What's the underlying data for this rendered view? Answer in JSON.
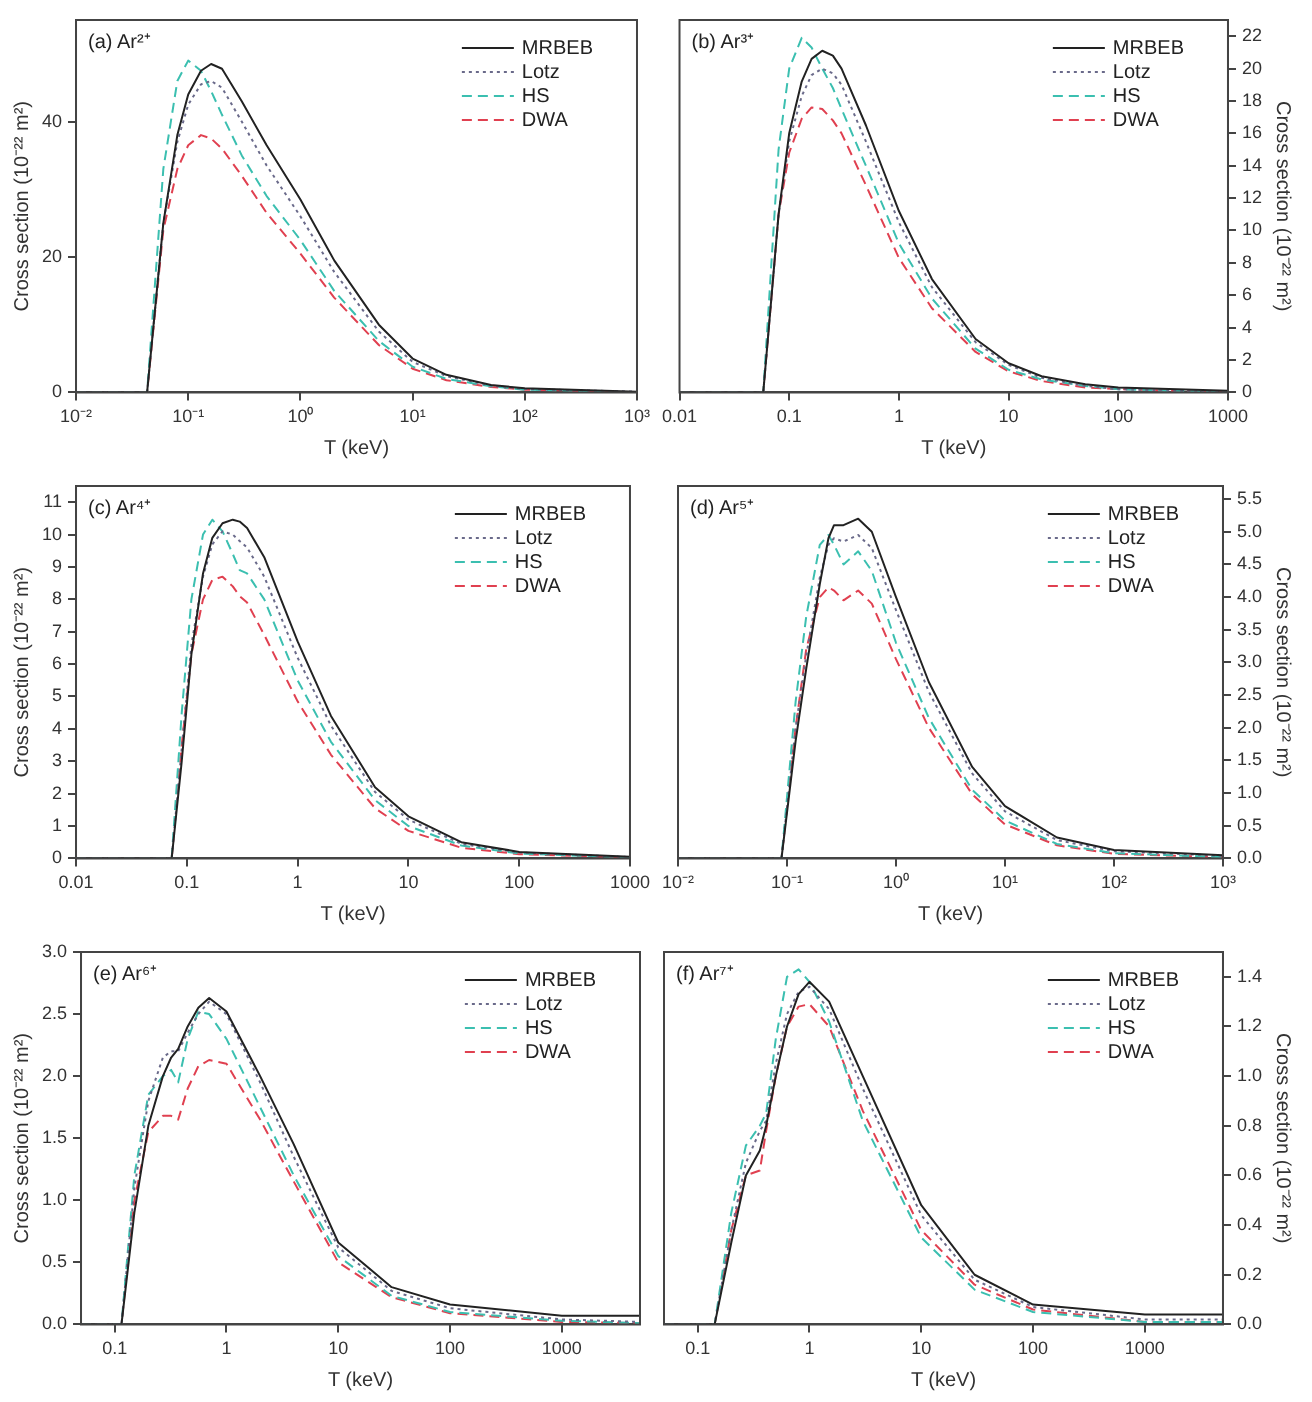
{
  "chart_data": [
    {
      "type": "line",
      "title": "(a) Ar²⁺",
      "xlabel": "T (keV)",
      "ylabel": "Cross section (10⁻²² m²)",
      "log": "x",
      "legend": "top right",
      "marker": "none",
      "xlim": [
        0.01,
        1000
      ],
      "xticks": [
        {
          "value": 0.01,
          "label": "10⁻²"
        },
        {
          "value": 0.1,
          "label": "10⁻¹"
        },
        {
          "value": 1,
          "label": "10⁰"
        },
        {
          "value": 10,
          "label": "10¹"
        },
        {
          "value": 100,
          "label": "10²"
        },
        {
          "value": 1000,
          "label": "10³"
        }
      ],
      "ylim": [
        0,
        55
      ],
      "yticks": [
        0,
        20,
        40
      ],
      "x": [
        0.01,
        0.043,
        0.06,
        0.08,
        0.1,
        0.13,
        0.16,
        0.2,
        0.3,
        0.5,
        1,
        2,
        5,
        10,
        20,
        50,
        100,
        1000
      ],
      "series": [
        {
          "name": "MRBEB",
          "color": "#222222",
          "line_style": "solid",
          "values": [
            0,
            0,
            25,
            38,
            44,
            47.5,
            48.5,
            47.8,
            43,
            36.5,
            28.5,
            19.5,
            10,
            5,
            2.6,
            1.1,
            0.6,
            0.1
          ]
        },
        {
          "name": "Lotz",
          "color": "#6a6a8a",
          "line_style": "dotted",
          "values": [
            0,
            0,
            25,
            37,
            42.5,
            45.5,
            46,
            45,
            40,
            33.5,
            26,
            17.8,
            9,
            4.5,
            2.4,
            1,
            0.5,
            0.1
          ]
        },
        {
          "name": "HS",
          "color": "#3bbfb0",
          "line_style": "dashed",
          "values": [
            0,
            0,
            33,
            46,
            49,
            47.5,
            44.5,
            41,
            35,
            29,
            22.5,
            15,
            7.6,
            3.8,
            2,
            0.9,
            0.4,
            0
          ]
        },
        {
          "name": "DWA",
          "color": "#e04050",
          "line_style": "dashed",
          "values": [
            0,
            0,
            24,
            33,
            36.5,
            38,
            37.5,
            36,
            32,
            26.5,
            20.5,
            14,
            7,
            3.5,
            1.8,
            0.8,
            0.4,
            0
          ]
        }
      ]
    },
    {
      "type": "line",
      "title": "(b) Ar³⁺",
      "xlabel": "T (keV)",
      "y2label": "Cross section (10⁻²² m²)",
      "log": "x",
      "legend": "top right",
      "marker": "none",
      "xlim": [
        0.01,
        1000
      ],
      "xticks": [
        0.01,
        0.1,
        1,
        10,
        100,
        1000
      ],
      "y2lim": [
        0,
        23
      ],
      "y2ticks": [
        0,
        2,
        4,
        6,
        8,
        10,
        12,
        14,
        16,
        18,
        20,
        22
      ],
      "x": [
        0.01,
        0.058,
        0.08,
        0.1,
        0.13,
        0.16,
        0.2,
        0.25,
        0.3,
        0.5,
        1,
        2,
        5,
        10,
        20,
        50,
        100,
        1000
      ],
      "series": [
        {
          "name": "MRBEB",
          "color": "#222222",
          "line_style": "solid",
          "axis": "y2",
          "values": [
            0,
            0,
            11,
            16,
            19.2,
            20.6,
            21.1,
            20.8,
            20,
            16.5,
            11.2,
            7,
            3.3,
            1.8,
            1,
            0.5,
            0.3,
            0.1
          ]
        },
        {
          "name": "Lotz",
          "color": "#6a6a8a",
          "line_style": "dotted",
          "axis": "y2",
          "values": [
            0,
            0,
            11,
            15.5,
            18.3,
            19.6,
            20,
            19.7,
            19,
            15.5,
            10.5,
            6.5,
            3.1,
            1.7,
            0.9,
            0.4,
            0.2,
            0
          ]
        },
        {
          "name": "HS",
          "color": "#3bbfb0",
          "line_style": "dashed",
          "axis": "y2",
          "values": [
            0,
            0,
            15,
            20,
            21.9,
            21.3,
            20,
            18.8,
            17.5,
            14,
            9.2,
            5.8,
            2.7,
            1.4,
            0.8,
            0.4,
            0.2,
            0
          ]
        },
        {
          "name": "DWA",
          "color": "#e04050",
          "line_style": "dashed",
          "axis": "y2",
          "values": [
            0,
            0,
            11,
            14.8,
            16.9,
            17.6,
            17.5,
            16.8,
            16,
            12.8,
            8.3,
            5.2,
            2.5,
            1.3,
            0.7,
            0.3,
            0.2,
            0
          ]
        }
      ]
    },
    {
      "type": "line",
      "title": "(c) Ar⁴⁺",
      "xlabel": "T (keV)",
      "ylabel": "Cross section (10⁻²² m²)",
      "log": "x",
      "legend": "top right",
      "marker": "none",
      "xlim": [
        0.01,
        1000
      ],
      "xticks": [
        0.01,
        0.1,
        1,
        10,
        100,
        1000
      ],
      "ylim": [
        0,
        11.5
      ],
      "yticks": [
        0,
        1,
        2,
        3,
        4,
        5,
        6,
        7,
        8,
        9,
        10,
        11
      ],
      "x": [
        0.01,
        0.073,
        0.09,
        0.11,
        0.14,
        0.17,
        0.21,
        0.26,
        0.3,
        0.35,
        0.5,
        1,
        2,
        5,
        10,
        30,
        100,
        1000
      ],
      "series": [
        {
          "name": "MRBEB",
          "color": "#222222",
          "line_style": "solid",
          "values": [
            0,
            0,
            3,
            6.3,
            8.8,
            9.9,
            10.35,
            10.46,
            10.4,
            10.2,
            9.3,
            6.7,
            4.4,
            2.2,
            1.3,
            0.5,
            0.2,
            0.05
          ]
        },
        {
          "name": "Lotz",
          "color": "#6a6a8a",
          "line_style": "dotted",
          "values": [
            0,
            0,
            3.4,
            6.6,
            8.7,
            9.7,
            10.1,
            10,
            9.8,
            9.6,
            8.7,
            6.2,
            4.1,
            2.05,
            1.2,
            0.45,
            0.18,
            0.04
          ]
        },
        {
          "name": "HS",
          "color": "#3bbfb0",
          "line_style": "dashed",
          "values": [
            0,
            0,
            4.5,
            8,
            10,
            10.46,
            10.1,
            9.4,
            8.9,
            8.8,
            8,
            5.5,
            3.6,
            1.8,
            1,
            0.4,
            0.15,
            0.03
          ]
        },
        {
          "name": "DWA",
          "color": "#e04050",
          "line_style": "dashed",
          "values": [
            0,
            0,
            3.5,
            6.3,
            8,
            8.6,
            8.7,
            8.4,
            8.1,
            7.9,
            6.9,
            4.85,
            3.2,
            1.55,
            0.85,
            0.33,
            0.13,
            0.03
          ]
        }
      ]
    },
    {
      "type": "line",
      "title": "(d) Ar⁵⁺",
      "xlabel": "T (keV)",
      "y2label": "Cross section (10⁻²² m²)",
      "log": "x",
      "legend": "top right",
      "marker": "none",
      "xlim": [
        0.01,
        1000
      ],
      "xticks": [
        {
          "value": 0.01,
          "label": "10⁻²"
        },
        {
          "value": 0.1,
          "label": "10⁻¹"
        },
        {
          "value": 1,
          "label": "10⁰"
        },
        {
          "value": 10,
          "label": "10¹"
        },
        {
          "value": 100,
          "label": "10²"
        },
        {
          "value": 1000,
          "label": "10³"
        }
      ],
      "y2lim": [
        0,
        5.7
      ],
      "y2ticks": [
        {
          "value": 0,
          "label": "0.0"
        },
        0.5,
        {
          "value": 1,
          "label": "1.0"
        },
        1.5,
        {
          "value": 2,
          "label": "2.0"
        },
        2.5,
        {
          "value": 3,
          "label": "3.0"
        },
        3.5,
        {
          "value": 4,
          "label": "4.0"
        },
        4.5,
        {
          "value": 5,
          "label": "5.0"
        },
        5.5
      ],
      "x": [
        0.01,
        0.089,
        0.12,
        0.15,
        0.2,
        0.24,
        0.27,
        0.33,
        0.45,
        0.6,
        1,
        2,
        5,
        10,
        30,
        100,
        1000
      ],
      "series": [
        {
          "name": "MRBEB",
          "color": "#222222",
          "line_style": "solid",
          "axis": "y2",
          "values": [
            0,
            0,
            1.8,
            2.9,
            4.2,
            4.9,
            5.1,
            5.1,
            5.2,
            5,
            4,
            2.7,
            1.4,
            0.8,
            0.32,
            0.13,
            0.05
          ]
        },
        {
          "name": "Lotz",
          "color": "#6a6a8a",
          "line_style": "dotted",
          "axis": "y2",
          "values": [
            0,
            0,
            2,
            3.1,
            4.3,
            4.8,
            4.9,
            4.85,
            4.95,
            4.75,
            3.8,
            2.55,
            1.3,
            0.72,
            0.28,
            0.11,
            0.04
          ]
        },
        {
          "name": "HS",
          "color": "#3bbfb0",
          "line_style": "dashed",
          "axis": "y2",
          "values": [
            0,
            0,
            2.4,
            3.7,
            4.8,
            4.95,
            4.8,
            4.5,
            4.7,
            4.4,
            3.3,
            2.15,
            1.05,
            0.58,
            0.22,
            0.08,
            0.02
          ]
        },
        {
          "name": "DWA",
          "color": "#e04050",
          "line_style": "dashed",
          "axis": "y2",
          "values": [
            0,
            0,
            2,
            3.2,
            4,
            4.15,
            4.1,
            3.95,
            4.1,
            3.9,
            3.05,
            2,
            0.98,
            0.52,
            0.2,
            0.07,
            0.02
          ]
        }
      ]
    },
    {
      "type": "line",
      "title": "(e) Ar⁶⁺",
      "xlabel": "T (keV)",
      "ylabel": "Cross section (10⁻²² m²)",
      "log": "x",
      "legend": "top right",
      "marker": "none",
      "xlim": [
        0.05,
        5000
      ],
      "xticks": [
        0.1,
        1,
        10,
        100,
        1000
      ],
      "ylim": [
        0,
        3
      ],
      "yticks": [
        {
          "value": 0,
          "label": "0.0"
        },
        0.5,
        {
          "value": 1,
          "label": "1.0"
        },
        1.5,
        {
          "value": 2,
          "label": "2.0"
        },
        2.5,
        {
          "value": 3,
          "label": "3.0"
        }
      ],
      "x": [
        0.05,
        0.115,
        0.15,
        0.2,
        0.27,
        0.32,
        0.37,
        0.45,
        0.56,
        0.7,
        1,
        2,
        4,
        10,
        30,
        100,
        1000,
        5000
      ],
      "series": [
        {
          "name": "MRBEB",
          "color": "#222222",
          "line_style": "solid",
          "values": [
            0,
            0,
            0.9,
            1.6,
            2,
            2.15,
            2.22,
            2.4,
            2.55,
            2.63,
            2.52,
            2,
            1.45,
            0.66,
            0.3,
            0.16,
            0.07,
            0.07
          ]
        },
        {
          "name": "Lotz",
          "color": "#6a6a8a",
          "line_style": "dotted",
          "values": [
            0,
            0,
            1.1,
            1.8,
            2.15,
            2.2,
            2.2,
            2.35,
            2.5,
            2.6,
            2.5,
            1.95,
            1.35,
            0.62,
            0.27,
            0.13,
            0.04,
            0.02
          ]
        },
        {
          "name": "HS",
          "color": "#3bbfb0",
          "line_style": "dashed",
          "values": [
            0,
            0,
            1.2,
            1.85,
            2,
            2.05,
            1.95,
            2.3,
            2.52,
            2.5,
            2.3,
            1.75,
            1.2,
            0.55,
            0.23,
            0.1,
            0.03,
            0.01
          ]
        },
        {
          "name": "DWA",
          "color": "#e04050",
          "line_style": "dashed",
          "values": [
            0,
            0,
            1,
            1.55,
            1.68,
            1.68,
            1.65,
            1.9,
            2.08,
            2.13,
            2.1,
            1.65,
            1.15,
            0.5,
            0.22,
            0.09,
            0.02,
            0.01
          ]
        }
      ]
    },
    {
      "type": "line",
      "title": "(f) Ar⁷⁺",
      "xlabel": "T (keV)",
      "y2label": "Cross section (10⁻²² m²)",
      "log": "x",
      "legend": "top right",
      "marker": "none",
      "xlim": [
        0.05,
        5000
      ],
      "xticks": [
        0.1,
        1,
        10,
        100,
        1000
      ],
      "y2lim": [
        0,
        1.5
      ],
      "y2ticks": [
        {
          "value": 0,
          "label": "0.0"
        },
        0.2,
        0.4,
        0.6,
        0.8,
        {
          "value": 1,
          "label": "1.0"
        },
        1.2,
        1.4
      ],
      "x": [
        0.05,
        0.142,
        0.2,
        0.27,
        0.36,
        0.41,
        0.5,
        0.63,
        0.8,
        1,
        1.5,
        3,
        10,
        30,
        100,
        1000,
        5000
      ],
      "series": [
        {
          "name": "MRBEB",
          "color": "#222222",
          "line_style": "solid",
          "axis": "y2",
          "values": [
            0,
            0,
            0.33,
            0.6,
            0.7,
            0.8,
            1,
            1.2,
            1.33,
            1.38,
            1.3,
            1,
            0.48,
            0.2,
            0.08,
            0.04,
            0.04
          ]
        },
        {
          "name": "Lotz",
          "color": "#6a6a8a",
          "line_style": "dotted",
          "axis": "y2",
          "values": [
            0,
            0,
            0.38,
            0.65,
            0.78,
            0.82,
            1.05,
            1.25,
            1.34,
            1.36,
            1.27,
            0.95,
            0.44,
            0.18,
            0.07,
            0.02,
            0.02
          ]
        },
        {
          "name": "HS",
          "color": "#3bbfb0",
          "line_style": "dashed",
          "axis": "y2",
          "values": [
            0,
            0,
            0.45,
            0.72,
            0.8,
            0.85,
            1.15,
            1.4,
            1.43,
            1.38,
            1.22,
            0.82,
            0.35,
            0.14,
            0.05,
            0.01,
            0.01
          ]
        },
        {
          "name": "DWA",
          "color": "#e04050",
          "line_style": "dashed",
          "axis": "y2",
          "values": [
            0,
            0,
            0.38,
            0.6,
            0.62,
            0.78,
            1,
            1.2,
            1.28,
            1.29,
            1.2,
            0.86,
            0.38,
            0.16,
            0.06,
            0.01,
            0.01
          ]
        }
      ]
    }
  ]
}
